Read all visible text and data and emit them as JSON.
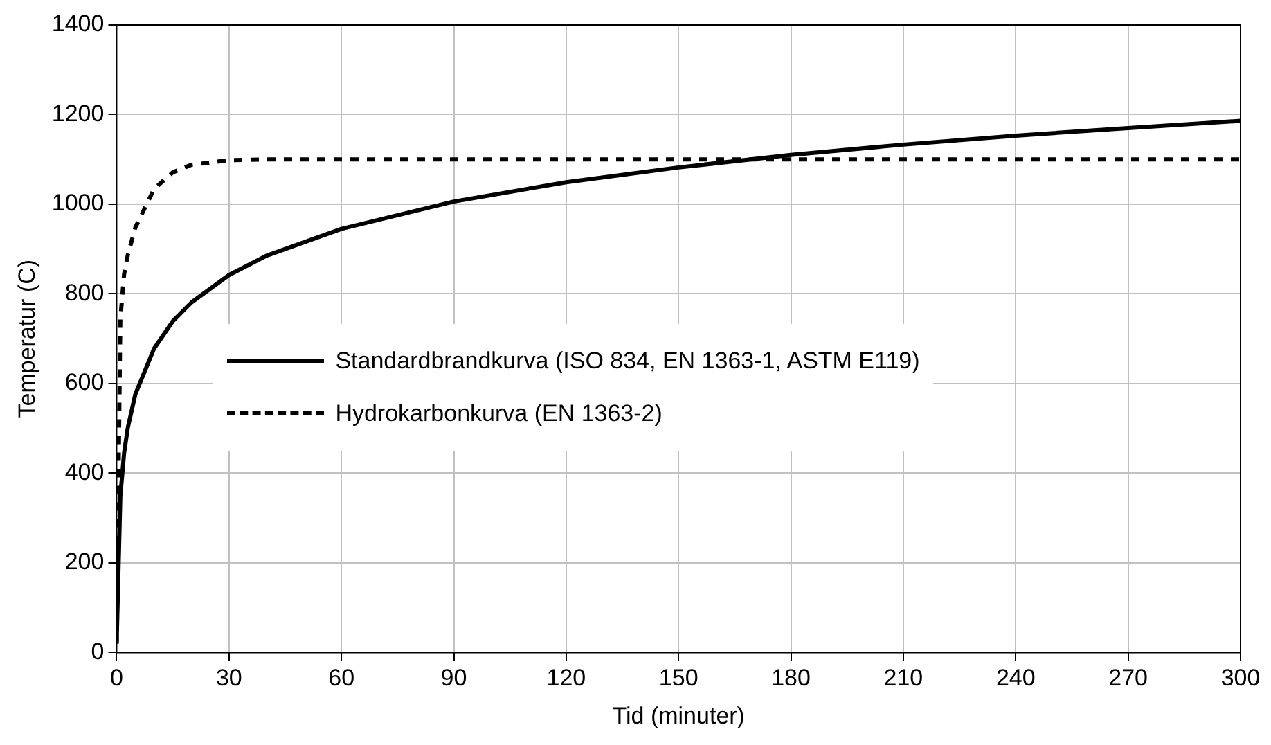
{
  "chart_data": {
    "type": "line",
    "xlabel": "Tid (minuter)",
    "ylabel": "Temperatur (C)",
    "xlim": [
      0,
      300
    ],
    "xticks": [
      0,
      30,
      60,
      90,
      120,
      150,
      180,
      210,
      240,
      270,
      300
    ],
    "ylim": [
      0,
      1400
    ],
    "yticks": [
      0,
      200,
      400,
      600,
      800,
      1000,
      1200,
      1400
    ],
    "grid": true,
    "legend": "left",
    "marker": "none",
    "series": [
      {
        "name": "Standardbrandkurva (ISO 834, EN 1363-1, ASTM E119)",
        "color": "#000000",
        "line_style": "solid",
        "x": [
          0,
          1,
          2,
          3,
          5,
          10,
          15,
          20,
          30,
          40,
          60,
          90,
          120,
          150,
          180,
          210,
          240,
          270,
          300
        ],
        "values": [
          20,
          349,
          445,
          502,
          576,
          678,
          739,
          781,
          842,
          885,
          945,
          1006,
          1049,
          1082,
          1110,
          1133,
          1153,
          1170,
          1186
        ]
      },
      {
        "name": "Hydrokarbonkurva (EN 1363-2)",
        "color": "#000000",
        "line_style": "dashed",
        "x": [
          0,
          1,
          2,
          3,
          5,
          10,
          15,
          20,
          30,
          40,
          60,
          120,
          180,
          240,
          300
        ],
        "values": [
          20,
          743,
          844,
          887,
          948,
          1034,
          1071,
          1088,
          1098,
          1100,
          1100,
          1100,
          1100,
          1100,
          1100
        ]
      }
    ]
  }
}
